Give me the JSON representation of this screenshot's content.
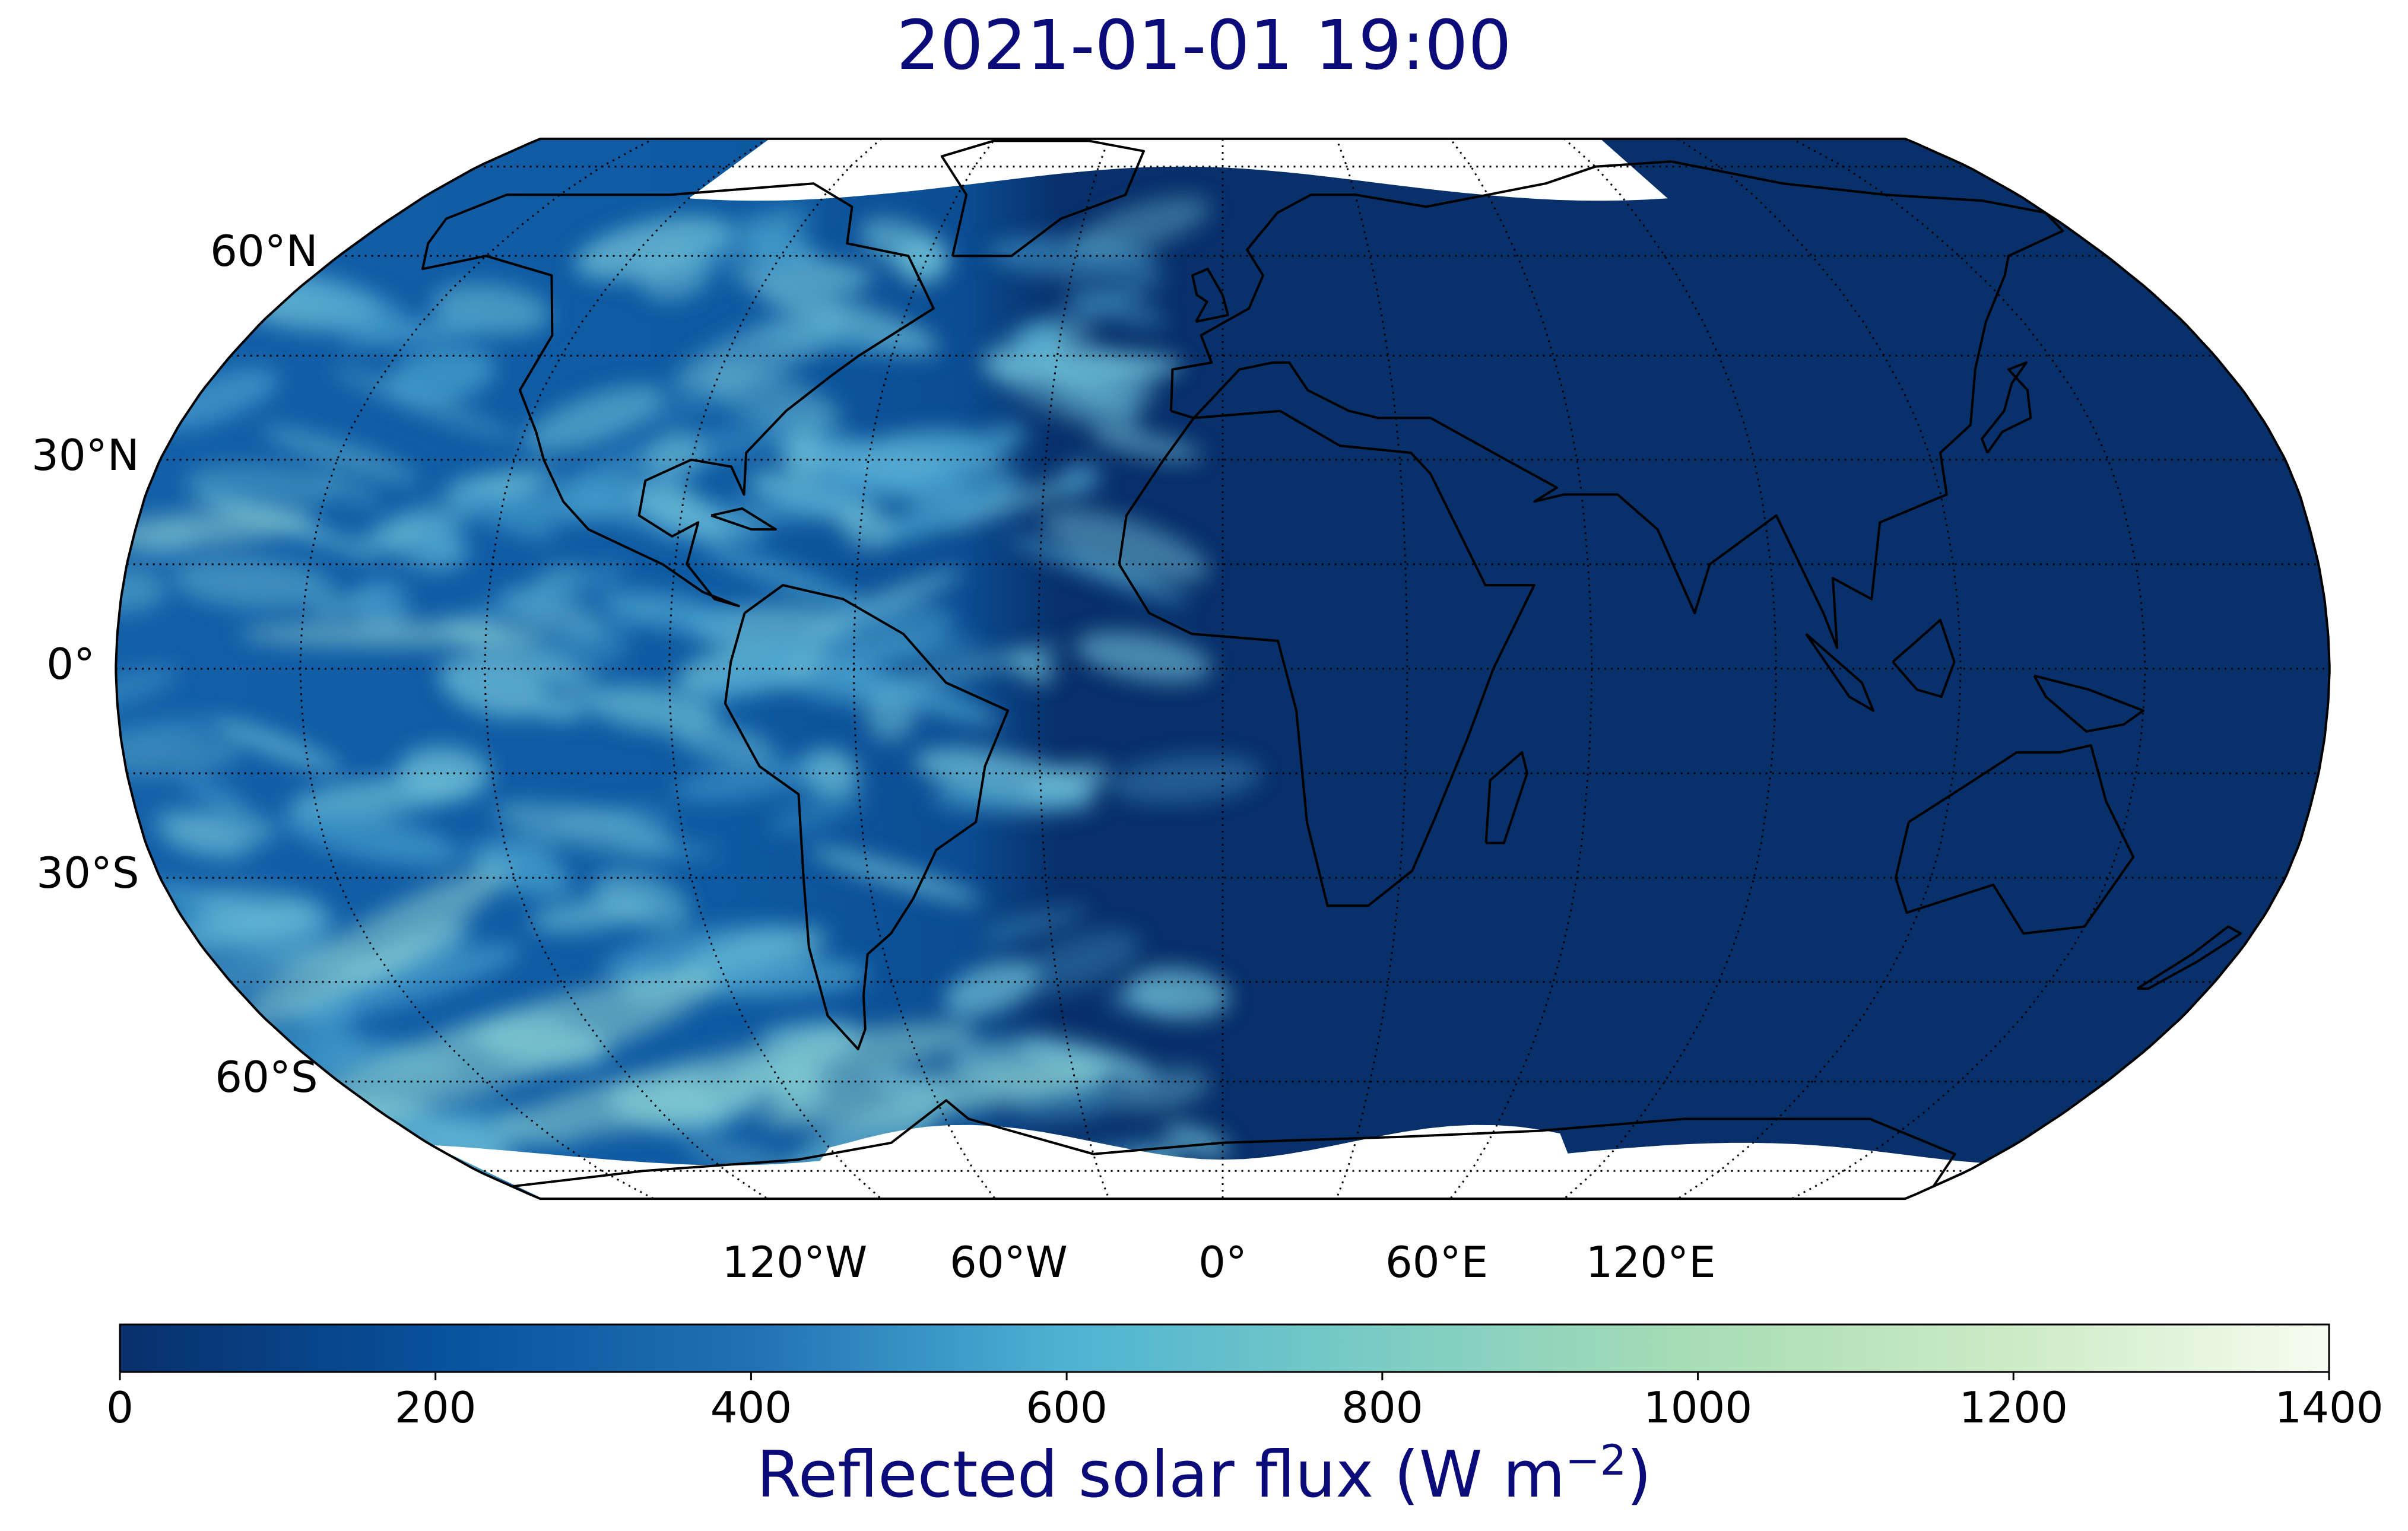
{
  "title": "2021-01-01 19:00",
  "map": {
    "projection": "robinson",
    "central_longitude": 0,
    "lat_labels": [
      "60°N",
      "30°N",
      "0°",
      "30°S",
      "60°S"
    ],
    "lon_labels": [
      "120°W",
      "60°W",
      "0°",
      "60°E",
      "120°E"
    ],
    "gridlines": {
      "style": "dotted",
      "lat_step": 15,
      "lon_step": 30
    },
    "variable": "Reflected solar flux",
    "dark_side": "Africa, Europe, Asia, Indian Ocean",
    "sunlit_side": "Americas, Pacific, Atlantic"
  },
  "colorbar": {
    "cmap": "GnBu_r",
    "colors": [
      "#08306b",
      "#08519c",
      "#2171b5",
      "#4eb3d3",
      "#7bccc4",
      "#a8ddb5",
      "#ccebc5",
      "#f7fcf0"
    ],
    "min": 0,
    "max": 1400,
    "ticks": [
      "0",
      "200",
      "400",
      "600",
      "800",
      "1000",
      "1200",
      "1400"
    ],
    "label_main": "Reflected solar flux (W m",
    "label_sup": "−2",
    "label_end": ")"
  },
  "colors": {
    "night": "#08306b",
    "ocean_day": "#0d57a0",
    "title": "#0b0b7a"
  }
}
